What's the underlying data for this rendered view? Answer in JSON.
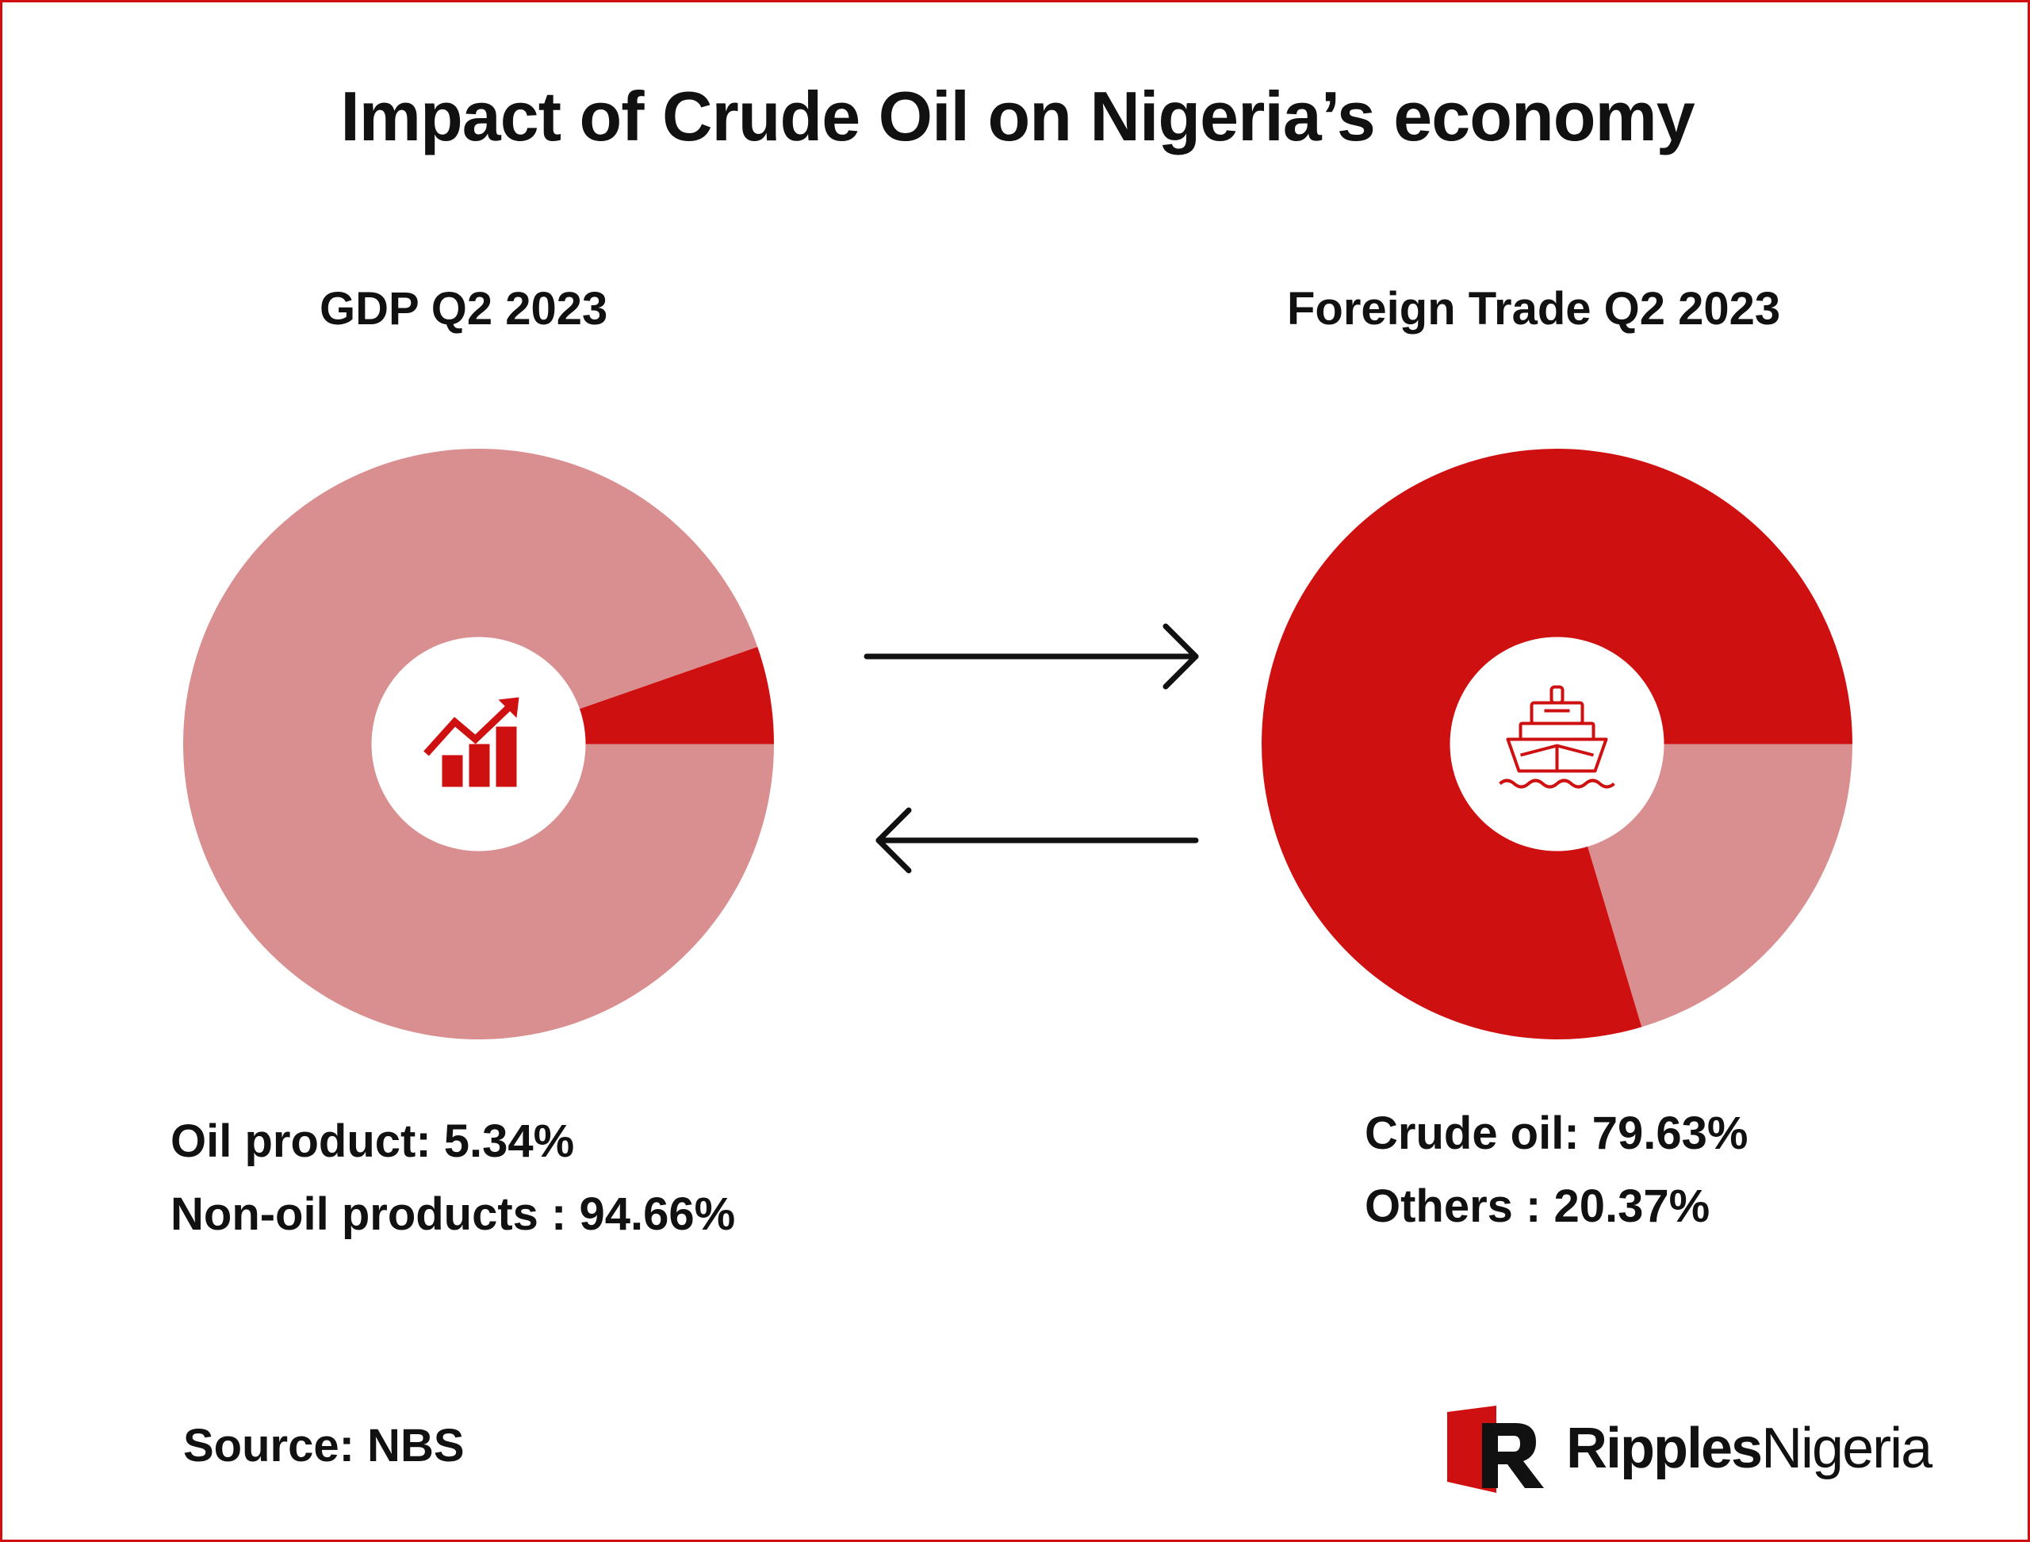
{
  "title": "Impact of Crude Oil on Nigeria’s economy",
  "source": "Source: NBS",
  "logo": {
    "bold": "Ripples",
    "light": "Nigeria"
  },
  "colors": {
    "primary": "#cf1010",
    "secondary": "#d98e90",
    "text": "#111111"
  },
  "icons": {
    "gdp": "growth-chart-icon",
    "trade": "ship-icon",
    "arrows": [
      "arrow-right-icon",
      "arrow-left-icon"
    ]
  },
  "chart_data": [
    {
      "type": "pie",
      "title": "GDP Q2 2023",
      "slices": [
        {
          "label": "Oil product",
          "value": 5.34,
          "color": "#cf1010"
        },
        {
          "label": "Non-oil products",
          "value": 94.66,
          "color": "#d98e90"
        }
      ],
      "legend": [
        "Oil product: 5.34%",
        "Non-oil products : 94.66%"
      ]
    },
    {
      "type": "pie",
      "title": "Foreign Trade Q2 2023",
      "slices": [
        {
          "label": "Crude oil",
          "value": 79.63,
          "color": "#cf1010"
        },
        {
          "label": "Others",
          "value": 20.37,
          "color": "#d98e90"
        }
      ],
      "legend": [
        "Crude oil: 79.63%",
        "Others : 20.37%"
      ]
    }
  ]
}
